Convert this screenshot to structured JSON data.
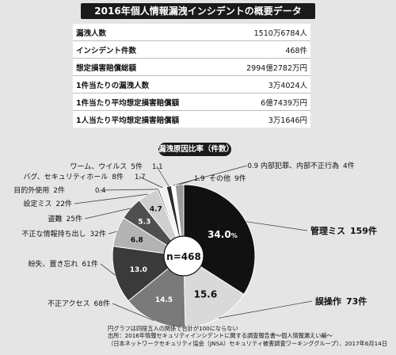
{
  "header": {
    "title": "2016年個人情報漏洩インシデントの概要データ"
  },
  "summary": [
    {
      "label": "漏洩人数",
      "value": "1510万6784人"
    },
    {
      "label": "インシデント件数",
      "value": "468件"
    },
    {
      "label": "想定損害賠償総額",
      "value": "2994億2782万円"
    },
    {
      "label": "1件当たりの漏洩人数",
      "value": "3万4024人"
    },
    {
      "label": "1件当たり平均想定損害賠償額",
      "value": "6億7439万円"
    },
    {
      "label": "1人当たり平均想定損害賠償額",
      "value": "3万1646円"
    }
  ],
  "chart_title": "漏洩原因比率（件数）",
  "chart_data": {
    "type": "pie",
    "center_label": "n=468",
    "slices": [
      {
        "name": "管理ミス",
        "count": "159件",
        "value": 34.0,
        "value_label": "34.0",
        "unit": "%",
        "color": "#111111"
      },
      {
        "name": "誤操作",
        "count": "73件",
        "value": 15.6,
        "value_label": "15.6",
        "color": "#d9d9d9"
      },
      {
        "name": "不正アクセス",
        "count": "68件",
        "value": 14.5,
        "value_label": "14.5",
        "color": "#7a7a7a"
      },
      {
        "name": "紛失、置き忘れ",
        "count": "61件",
        "value": 13.0,
        "value_label": "13.0",
        "color": "#3a3a3a"
      },
      {
        "name": "不正な情報持ち出し",
        "count": "32件",
        "value": 6.8,
        "value_label": "6.8",
        "color": "#b3b3b3"
      },
      {
        "name": "盗難",
        "count": "25件",
        "value": 5.3,
        "value_label": "5.3",
        "color": "#4f4f4f"
      },
      {
        "name": "設定ミス",
        "count": "22件",
        "value": 4.7,
        "value_label": "4.7",
        "color": "#cfcfcf"
      },
      {
        "name": "目的外使用",
        "count": "2件",
        "value": 0.4,
        "value_label": "0.4",
        "color": "#6a6a6a"
      },
      {
        "name": "バグ、セキュリティホール",
        "count": "8件",
        "value": 1.7,
        "value_label": "1.7",
        "color": "#f2f2f2"
      },
      {
        "name": "ワーム、ウイルス",
        "count": "5件",
        "value": 1.1,
        "value_label": "1.1",
        "color": "#2a2a2a"
      },
      {
        "name": "内部犯罪、内部不正行為",
        "count": "4件",
        "value": 0.9,
        "value_label": "0.9",
        "color": "#ffffff"
      },
      {
        "name": "その他",
        "count": "9件",
        "value": 1.9,
        "value_label": "1.9",
        "color": "#9a9a9a"
      }
    ]
  },
  "notes": [
    "円グラフは四捨五入の関係で合計が100にならない",
    "出所：2016年情報セキュリティインシデントに関する調査報告書〜個人情報漏えい編〜",
    "（日本ネットワークセキュリティ協会（JNSA）セキュリティ被害調査ワーキンググループ）、2017年6月14日"
  ]
}
